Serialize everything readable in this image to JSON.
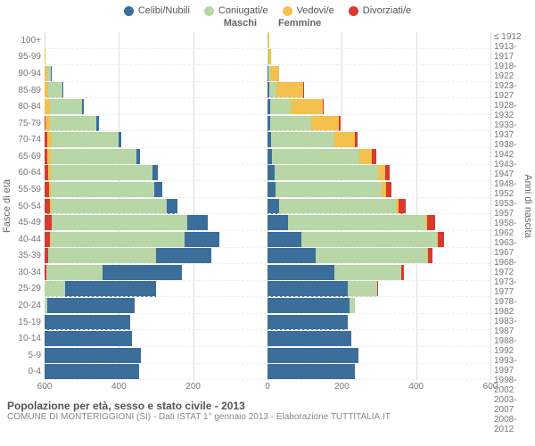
{
  "legend": {
    "items": [
      {
        "label": "Celibi/Nubili",
        "color": "#3b6e9b"
      },
      {
        "label": "Coniugati/e",
        "color": "#b8d6a6"
      },
      {
        "label": "Vedovi/e",
        "color": "#f4c04e"
      },
      {
        "label": "Divorziati/e",
        "color": "#d83a2f"
      }
    ]
  },
  "gender_labels": {
    "male": "Maschi",
    "female": "Femmine"
  },
  "axis_titles": {
    "left": "Fasce di età",
    "right": "Anni di nascita"
  },
  "x_axis": {
    "min": -600,
    "max": 600,
    "ticks": [
      -600,
      -400,
      -200,
      0,
      200,
      400,
      600
    ]
  },
  "age_groups": [
    {
      "age": "100+",
      "year": "≤ 1912",
      "m": [
        0,
        0,
        0,
        0
      ],
      "f": [
        0,
        2,
        2,
        0
      ]
    },
    {
      "age": "95-99",
      "year": "1913-1917",
      "m": [
        0,
        0,
        2,
        0
      ],
      "f": [
        0,
        2,
        8,
        0
      ]
    },
    {
      "age": "90-94",
      "year": "1918-1922",
      "m": [
        2,
        8,
        8,
        0
      ],
      "f": [
        2,
        5,
        25,
        0
      ]
    },
    {
      "age": "85-89",
      "year": "1923-1927",
      "m": [
        2,
        38,
        10,
        0
      ],
      "f": [
        5,
        20,
        70,
        2
      ]
    },
    {
      "age": "80-84",
      "year": "1928-1932",
      "m": [
        5,
        85,
        15,
        0
      ],
      "f": [
        8,
        55,
        85,
        3
      ]
    },
    {
      "age": "75-79",
      "year": "1933-1937",
      "m": [
        6,
        125,
        12,
        3
      ],
      "f": [
        8,
        110,
        75,
        5
      ]
    },
    {
      "age": "70-74",
      "year": "1938-1942",
      "m": [
        8,
        180,
        12,
        6
      ],
      "f": [
        10,
        170,
        55,
        8
      ]
    },
    {
      "age": "65-69",
      "year": "1943-1947",
      "m": [
        10,
        230,
        10,
        8
      ],
      "f": [
        12,
        235,
        35,
        10
      ]
    },
    {
      "age": "60-64",
      "year": "1948-1952",
      "m": [
        15,
        275,
        6,
        10
      ],
      "f": [
        18,
        280,
        20,
        12
      ]
    },
    {
      "age": "55-59",
      "year": "1953-1957",
      "m": [
        20,
        280,
        4,
        12
      ],
      "f": [
        22,
        285,
        12,
        14
      ]
    },
    {
      "age": "50-54",
      "year": "1958-1962",
      "m": [
        30,
        310,
        3,
        15
      ],
      "f": [
        30,
        315,
        8,
        18
      ]
    },
    {
      "age": "45-49",
      "year": "1963-1967",
      "m": [
        55,
        365,
        2,
        18
      ],
      "f": [
        55,
        370,
        5,
        22
      ]
    },
    {
      "age": "40-44",
      "year": "1968-1972",
      "m": [
        95,
        360,
        1,
        15
      ],
      "f": [
        90,
        365,
        3,
        18
      ]
    },
    {
      "age": "35-39",
      "year": "1973-1977",
      "m": [
        150,
        290,
        0,
        10
      ],
      "f": [
        130,
        300,
        2,
        12
      ]
    },
    {
      "age": "30-34",
      "year": "1978-1982",
      "m": [
        215,
        150,
        0,
        5
      ],
      "f": [
        180,
        180,
        0,
        6
      ]
    },
    {
      "age": "25-29",
      "year": "1983-1987",
      "m": [
        245,
        55,
        0,
        0
      ],
      "f": [
        215,
        80,
        0,
        2
      ]
    },
    {
      "age": "20-24",
      "year": "1988-1992",
      "m": [
        235,
        8,
        0,
        0
      ],
      "f": [
        220,
        15,
        0,
        0
      ]
    },
    {
      "age": "15-19",
      "year": "1993-1997",
      "m": [
        230,
        0,
        0,
        0
      ],
      "f": [
        215,
        0,
        0,
        0
      ]
    },
    {
      "age": "10-14",
      "year": "1998-2002",
      "m": [
        235,
        0,
        0,
        0
      ],
      "f": [
        225,
        0,
        0,
        0
      ]
    },
    {
      "age": "5-9",
      "year": "2003-2007",
      "m": [
        260,
        0,
        0,
        0
      ],
      "f": [
        245,
        0,
        0,
        0
      ]
    },
    {
      "age": "0-4",
      "year": "2008-2012",
      "m": [
        255,
        0,
        0,
        0
      ],
      "f": [
        235,
        0,
        0,
        0
      ]
    }
  ],
  "colors": {
    "series": [
      "#3b6e9b",
      "#b8d6a6",
      "#f4c04e",
      "#d83a2f"
    ],
    "grid": "#dddddd",
    "background": "#ffffff"
  },
  "footer": {
    "title": "Popolazione per età, sesso e stato civile - 2013",
    "subtitle": "COMUNE DI MONTERIGGIONI (SI) - Dati ISTAT 1° gennaio 2013 - Elaborazione TUTTITALIA.IT"
  }
}
